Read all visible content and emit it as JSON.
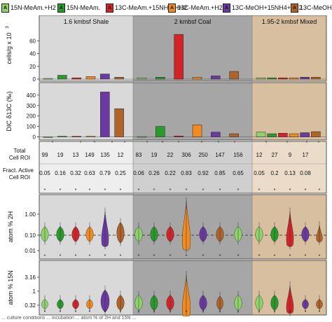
{
  "legend": [
    {
      "letter": "A",
      "text": "15N-MeAm.+H2",
      "color": "#8fd46a"
    },
    {
      "letter": "A",
      "text": "15N-MeAm.",
      "color": "#2a9b2a"
    },
    {
      "letter": "A",
      "text": "13C-MeAm.+15NH4++H2",
      "color": "#d4242a"
    },
    {
      "letter": "A",
      "text": "13C-MeAm.+H2",
      "color": "#f28a22"
    },
    {
      "letter": "A",
      "text": "13C-MeOH+15NH4++H2",
      "color": "#6a3aa0"
    },
    {
      "letter": "A",
      "text": "13C-MeOH",
      "color": "#b0632a"
    }
  ],
  "footer_text": "... culture conditions ... incubation ... atom % of 2H and 15N ... ",
  "colors": {
    "shale_bg": "#d9d9d9",
    "coal_bg": "#a6a6a6",
    "mixed_bg": "#d7bf9f",
    "dashed_line": "#222222"
  },
  "chart_data": {
    "type": "bar",
    "sections": [
      {
        "label": "1.6 kmbsf Shale"
      },
      {
        "label": "2 kmbsf Coal"
      },
      {
        "label": "1.95-2 kmbsf Mixed"
      }
    ],
    "series_colors": [
      "#8fd46a",
      "#2a9b2a",
      "#d4242a",
      "#f28a22",
      "#6a3aa0",
      "#b0632a"
    ],
    "panels": [
      {
        "name": "cells",
        "ylabel": "cells/g x 10",
        "ylabel_sup": "3",
        "ylim": [
          0,
          80
        ],
        "yticks": [
          0,
          20,
          40,
          60
        ],
        "values": [
          [
            1,
            6,
            2,
            4,
            8,
            3
          ],
          [
            2,
            3,
            70,
            3,
            5,
            12
          ],
          [
            2,
            2,
            2,
            2,
            3,
            3
          ]
        ]
      },
      {
        "name": "dic",
        "ylabel": "DIC δ13C (‰)",
        "ylim": [
          -10,
          480
        ],
        "yticks": [
          0,
          100,
          200,
          300,
          400
        ],
        "values": [
          [
            0,
            5,
            5,
            5,
            430,
            270
          ],
          [
            3,
            100,
            8,
            115,
            45,
            30
          ],
          [
            45,
            30,
            35,
            30,
            40,
            50
          ]
        ]
      }
    ],
    "stats": {
      "row_labels": [
        [
          "Total",
          "Cell ROI"
        ],
        [
          "Fract. Active",
          "Cell ROI"
        ]
      ],
      "total": [
        [
          "99",
          "19",
          "13",
          "149",
          "135",
          "12"
        ],
        [
          "83",
          "19",
          "22",
          "306",
          "250",
          "147",
          "156"
        ],
        [
          "12",
          "27",
          "9",
          "17"
        ]
      ],
      "fraction": [
        [
          "0.05",
          "0.16",
          "0.32",
          "0.63",
          "0.79",
          "0.25"
        ],
        [
          "0.06",
          "0.26",
          "0.22",
          "0.83",
          "0.92",
          "0.85",
          "0.65"
        ],
        [
          "0.05",
          "0.2",
          "0.13",
          "0.08"
        ]
      ]
    },
    "violin_panels": [
      {
        "ylabel": "atom % 2H",
        "yticks": [
          "1.00",
          "0.10",
          "0.01"
        ],
        "scale": "log"
      },
      {
        "ylabel": "atom % 15N",
        "yticks": [
          "3.16",
          "1",
          "0.32"
        ],
        "scale": "log"
      }
    ]
  }
}
